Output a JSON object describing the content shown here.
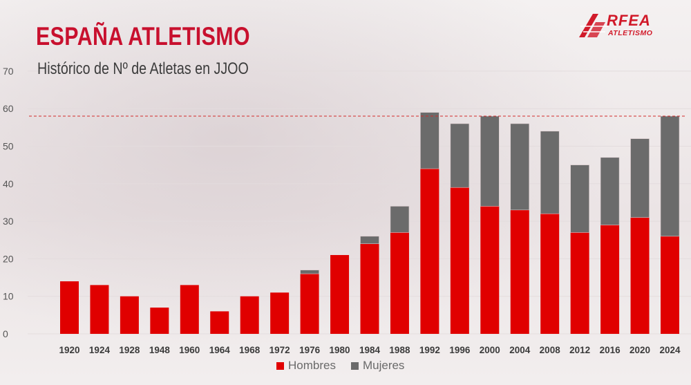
{
  "header": {
    "title": "ESPAÑA ATLETISMO",
    "subtitle": "Histórico de Nº de Atletas en JJOO"
  },
  "logo": {
    "text_top": "RFEA",
    "text_bottom": "ATLETISMO"
  },
  "colors": {
    "hombres": "#e00000",
    "mujeres": "#6b6b6b",
    "reference_line": "#d22a2a",
    "accent": "#c8102e"
  },
  "chart_data": {
    "type": "bar",
    "stacked": true,
    "categories": [
      "1920",
      "1924",
      "1928",
      "1948",
      "1960",
      "1964",
      "1968",
      "1972",
      "1976",
      "1980",
      "1984",
      "1988",
      "1992",
      "1996",
      "2000",
      "2004",
      "2008",
      "2012",
      "2016",
      "2020",
      "2024"
    ],
    "series": [
      {
        "name": "Hombres",
        "values": [
          14,
          13,
          10,
          7,
          13,
          6,
          10,
          11,
          16,
          21,
          24,
          27,
          44,
          39,
          34,
          33,
          32,
          27,
          29,
          31,
          26
        ]
      },
      {
        "name": "Mujeres",
        "values": [
          0,
          0,
          0,
          0,
          0,
          0,
          0,
          0,
          1,
          0,
          2,
          7,
          15,
          17,
          24,
          23,
          22,
          18,
          18,
          21,
          32
        ]
      }
    ],
    "ylim": [
      0,
      70
    ],
    "yticks": [
      0,
      10,
      20,
      30,
      40,
      50,
      60,
      70
    ],
    "reference_line": 58,
    "grid": true,
    "legend": "bottom"
  }
}
